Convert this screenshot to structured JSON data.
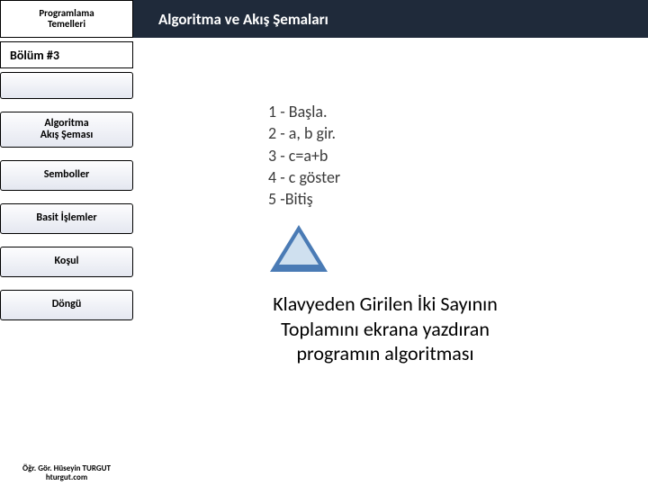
{
  "header": {
    "left_line1": "Programlama",
    "left_line2": "Temelleri",
    "title": "Algoritma ve Akış Şemaları"
  },
  "sidebar": {
    "section_label": "Bölüm #3",
    "items": [
      {
        "line1": "",
        "line2": ""
      },
      {
        "line1": "Algoritma",
        "line2": "Akış Şeması"
      },
      {
        "line1": "Semboller",
        "line2": ""
      },
      {
        "line1": "Basit İşlemler",
        "line2": ""
      },
      {
        "line1": "Koşul",
        "line2": ""
      },
      {
        "line1": "Döngü",
        "line2": ""
      }
    ]
  },
  "algorithm": {
    "steps": [
      "1 -  Başla.",
      "2 - a, b gir.",
      "3 - c=a+b",
      "4 - c göster",
      "5 -Bitiş"
    ]
  },
  "caption": {
    "line1": "Klavyeden Girilen İki Sayının",
    "line2": "Toplamını ekrana yazdıran",
    "line3": "programın algoritması"
  },
  "footer": {
    "line1": "Öğr. Gör. Hüseyin TURGUT",
    "line2": "hturgut.com"
  },
  "colors": {
    "header_bg": "#1f2a3a",
    "triangle_stroke": "#4a7bb5",
    "triangle_fill": "#cfe0ef"
  }
}
